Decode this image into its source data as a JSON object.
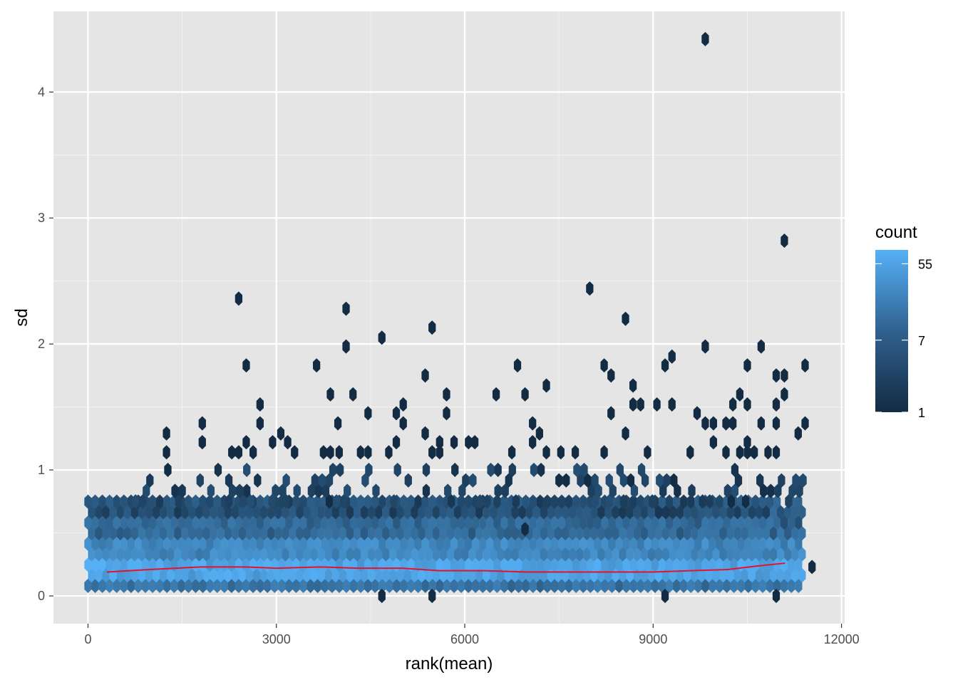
{
  "chart_data": {
    "type": "heatmap",
    "subtype": "hexbin",
    "title": "",
    "xlabel": "rank(mean)",
    "ylabel": "sd",
    "xlim": [
      -550,
      12050
    ],
    "ylim": [
      -0.22,
      4.64
    ],
    "x_ticks": [
      0,
      3000,
      6000,
      9000,
      12000
    ],
    "x_tick_labels": [
      "0",
      "3000",
      "6000",
      "9000",
      "12000"
    ],
    "y_ticks": [
      0,
      1,
      2,
      3,
      4
    ],
    "y_tick_labels": [
      "0",
      "1",
      "2",
      "3",
      "4"
    ],
    "grid": true,
    "colors": {
      "panel_background": "#e5e5e5",
      "grid_major": "#ffffff",
      "low": "#132b43",
      "high": "#56b1f7",
      "trend_line": "#e8112d"
    },
    "legend": {
      "title": "count",
      "position": "right",
      "scale": "log",
      "ticks": [
        1,
        7,
        55
      ],
      "tick_labels": [
        "1",
        "7",
        "55"
      ],
      "max": 80
    },
    "hexbin": {
      "x_step": 114.3,
      "y_step": 0.0835,
      "dense_band": {
        "x_range": [
          0,
          11100
        ],
        "y_range": [
          0.08,
          0.75
        ]
      },
      "scatter": [
        {
          "x": 9830,
          "y": 4.42
        },
        {
          "x": 11090,
          "y": 2.82
        },
        {
          "x": 2400,
          "y": 2.36
        },
        {
          "x": 7990,
          "y": 2.44
        },
        {
          "x": 4110,
          "y": 2.28
        },
        {
          "x": 8560,
          "y": 2.2
        },
        {
          "x": 5480,
          "y": 2.13
        },
        {
          "x": 4680,
          "y": 2.05
        },
        {
          "x": 4110,
          "y": 1.98
        },
        {
          "x": 9830,
          "y": 1.98
        },
        {
          "x": 10720,
          "y": 1.98
        },
        {
          "x": 9300,
          "y": 1.9
        },
        {
          "x": 2520,
          "y": 1.83
        },
        {
          "x": 3640,
          "y": 1.83
        },
        {
          "x": 6840,
          "y": 1.83
        },
        {
          "x": 8220,
          "y": 1.83
        },
        {
          "x": 9190,
          "y": 1.83
        },
        {
          "x": 10500,
          "y": 1.83
        },
        {
          "x": 11420,
          "y": 1.83
        },
        {
          "x": 5370,
          "y": 1.75
        },
        {
          "x": 8330,
          "y": 1.75
        },
        {
          "x": 10960,
          "y": 1.75
        },
        {
          "x": 11090,
          "y": 1.75
        },
        {
          "x": 7300,
          "y": 1.67
        },
        {
          "x": 8680,
          "y": 1.67
        },
        {
          "x": 3860,
          "y": 1.6
        },
        {
          "x": 4220,
          "y": 1.6
        },
        {
          "x": 5710,
          "y": 1.6
        },
        {
          "x": 6500,
          "y": 1.6
        },
        {
          "x": 6960,
          "y": 1.6
        },
        {
          "x": 10380,
          "y": 1.6
        },
        {
          "x": 11090,
          "y": 1.6
        },
        {
          "x": 2740,
          "y": 1.52
        },
        {
          "x": 5020,
          "y": 1.52
        },
        {
          "x": 8680,
          "y": 1.52
        },
        {
          "x": 8800,
          "y": 1.52
        },
        {
          "x": 9060,
          "y": 1.52
        },
        {
          "x": 9300,
          "y": 1.52
        },
        {
          "x": 10270,
          "y": 1.52
        },
        {
          "x": 10500,
          "y": 1.52
        },
        {
          "x": 10960,
          "y": 1.52
        },
        {
          "x": 4460,
          "y": 1.45
        },
        {
          "x": 4910,
          "y": 1.45
        },
        {
          "x": 5710,
          "y": 1.45
        },
        {
          "x": 8330,
          "y": 1.45
        },
        {
          "x": 9700,
          "y": 1.45
        },
        {
          "x": 1820,
          "y": 1.37
        },
        {
          "x": 2740,
          "y": 1.37
        },
        {
          "x": 3980,
          "y": 1.37
        },
        {
          "x": 5020,
          "y": 1.37
        },
        {
          "x": 7080,
          "y": 1.37
        },
        {
          "x": 9830,
          "y": 1.37
        },
        {
          "x": 9960,
          "y": 1.37
        },
        {
          "x": 10160,
          "y": 1.37
        },
        {
          "x": 10270,
          "y": 1.37
        },
        {
          "x": 10720,
          "y": 1.37
        },
        {
          "x": 10960,
          "y": 1.37
        },
        {
          "x": 11420,
          "y": 1.37
        },
        {
          "x": 1250,
          "y": 1.29
        },
        {
          "x": 3070,
          "y": 1.29
        },
        {
          "x": 5370,
          "y": 1.29
        },
        {
          "x": 7190,
          "y": 1.29
        },
        {
          "x": 8560,
          "y": 1.29
        },
        {
          "x": 11310,
          "y": 1.29
        },
        {
          "x": 1820,
          "y": 1.22
        },
        {
          "x": 2520,
          "y": 1.22
        },
        {
          "x": 2940,
          "y": 1.22
        },
        {
          "x": 3180,
          "y": 1.22
        },
        {
          "x": 4910,
          "y": 1.22
        },
        {
          "x": 5600,
          "y": 1.22
        },
        {
          "x": 5830,
          "y": 1.22
        },
        {
          "x": 6060,
          "y": 1.22
        },
        {
          "x": 6160,
          "y": 1.22
        },
        {
          "x": 7080,
          "y": 1.22
        },
        {
          "x": 9960,
          "y": 1.22
        },
        {
          "x": 10500,
          "y": 1.22
        },
        {
          "x": 1250,
          "y": 1.14
        },
        {
          "x": 2290,
          "y": 1.14
        },
        {
          "x": 2400,
          "y": 1.14
        },
        {
          "x": 2630,
          "y": 1.14
        },
        {
          "x": 3290,
          "y": 1.14
        },
        {
          "x": 3750,
          "y": 1.14
        },
        {
          "x": 3860,
          "y": 1.14
        },
        {
          "x": 4000,
          "y": 1.14
        },
        {
          "x": 4340,
          "y": 1.14
        },
        {
          "x": 4460,
          "y": 1.14
        },
        {
          "x": 4790,
          "y": 1.14
        },
        {
          "x": 5480,
          "y": 1.14
        },
        {
          "x": 5600,
          "y": 1.14
        },
        {
          "x": 6750,
          "y": 1.14
        },
        {
          "x": 7300,
          "y": 1.14
        },
        {
          "x": 7530,
          "y": 1.14
        },
        {
          "x": 7760,
          "y": 1.14
        },
        {
          "x": 8220,
          "y": 1.14
        },
        {
          "x": 8910,
          "y": 1.14
        },
        {
          "x": 9590,
          "y": 1.14
        },
        {
          "x": 10160,
          "y": 1.14
        },
        {
          "x": 10380,
          "y": 1.14
        },
        {
          "x": 10500,
          "y": 1.14
        },
        {
          "x": 10610,
          "y": 1.14
        },
        {
          "x": 10830,
          "y": 1.14
        },
        {
          "x": 10960,
          "y": 1.14
        },
        {
          "x": 6960,
          "y": 0.53
        },
        {
          "x": 4680,
          "y": 0.0
        },
        {
          "x": 5480,
          "y": 0.0
        },
        {
          "x": 9190,
          "y": 0.0
        },
        {
          "x": 10960,
          "y": 0.0
        },
        {
          "x": 11530,
          "y": 0.23
        }
      ]
    },
    "smooth_line": [
      {
        "x": 300,
        "y": 0.19
      },
      {
        "x": 1000,
        "y": 0.21
      },
      {
        "x": 1800,
        "y": 0.23
      },
      {
        "x": 2500,
        "y": 0.23
      },
      {
        "x": 3000,
        "y": 0.22
      },
      {
        "x": 3700,
        "y": 0.23
      },
      {
        "x": 4300,
        "y": 0.22
      },
      {
        "x": 5000,
        "y": 0.22
      },
      {
        "x": 5600,
        "y": 0.2
      },
      {
        "x": 6300,
        "y": 0.2
      },
      {
        "x": 7000,
        "y": 0.19
      },
      {
        "x": 7700,
        "y": 0.19
      },
      {
        "x": 8300,
        "y": 0.19
      },
      {
        "x": 9000,
        "y": 0.19
      },
      {
        "x": 9600,
        "y": 0.2
      },
      {
        "x": 10200,
        "y": 0.21
      },
      {
        "x": 10700,
        "y": 0.24
      },
      {
        "x": 11100,
        "y": 0.26
      }
    ]
  }
}
